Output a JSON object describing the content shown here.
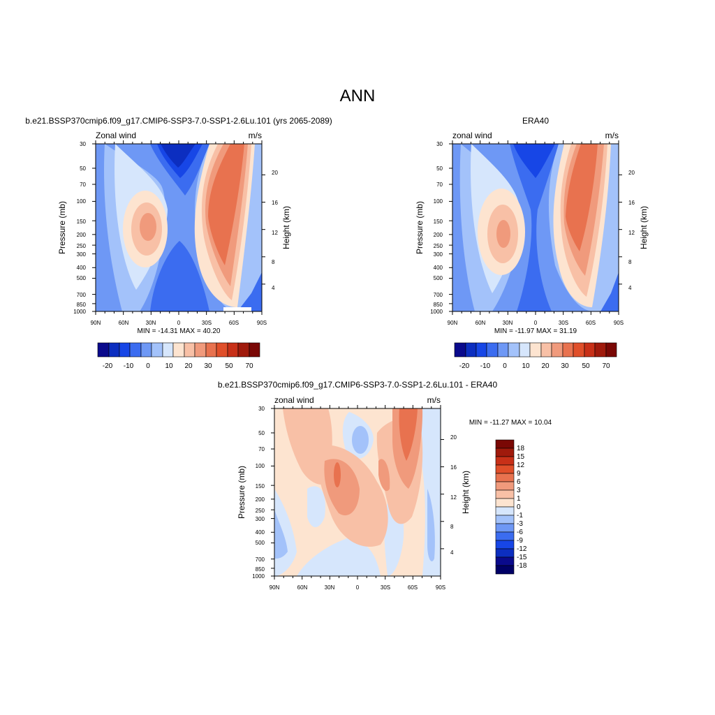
{
  "figure_title": "ANN",
  "panels": [
    {
      "title": "b.e21.BSSP370cmip6.f09_g17.CMIP6-SSP3-7.0-SSP1-2.6Lu.101 (yrs 2065-2089)",
      "left_label": "Zonal wind",
      "right_label": "m/s",
      "minmax": "MIN = -14.31  MAX =  40.20"
    },
    {
      "title": "ERA40",
      "left_label": "zonal wind",
      "right_label": "m/s",
      "minmax": "MIN = -11.97  MAX =  31.19"
    },
    {
      "title": "b.e21.BSSP370cmip6.f09_g17.CMIP6-SSP3-7.0-SSP1-2.6Lu.101 - ERA40",
      "left_label": "zonal wind",
      "right_label": "m/s",
      "minmax": "MIN = -11.27  MAX =  10.04"
    }
  ],
  "axes": {
    "ylabel": "Pressure (mb)",
    "y2label": "Height (km)",
    "x_ticks": [
      "90N",
      "60N",
      "30N",
      "0",
      "30S",
      "60S",
      "90S"
    ],
    "p_ticks": [
      "30",
      "50",
      "70",
      "100",
      "150",
      "200",
      "250",
      "300",
      "400",
      "500",
      "700",
      "850",
      "1000"
    ],
    "h_ticks": [
      "20",
      "16",
      "12",
      "8",
      "4"
    ]
  },
  "colorbar_main": {
    "labels": [
      "-20",
      "-10",
      "0",
      "10",
      "20",
      "30",
      "50",
      "70"
    ],
    "colors": [
      "#0a0a8c",
      "#0c2ec0",
      "#1746e6",
      "#3b6cf0",
      "#6e98f5",
      "#a3c2fa",
      "#d6e6fc",
      "#fde4d0",
      "#f8c0a6",
      "#f09a7c",
      "#e8724f",
      "#e04f2a",
      "#c83018",
      "#a01a0c",
      "#7a0805"
    ]
  },
  "colorbar_diff": {
    "labels": [
      "18",
      "15",
      "12",
      "9",
      "6",
      "3",
      "1",
      "0",
      "-1",
      "-3",
      "-6",
      "-9",
      "-12",
      "-15",
      "-18"
    ],
    "colors": [
      "#7a0805",
      "#a01a0c",
      "#c83018",
      "#e04f2a",
      "#e8724f",
      "#f09a7c",
      "#f8c0a6",
      "#fde4d0",
      "#d6e6fc",
      "#a3c2fa",
      "#6e98f5",
      "#3b6cf0",
      "#1746e6",
      "#0c2ec0",
      "#0a0a8c",
      "#000066"
    ]
  },
  "chart_data": [
    {
      "type": "heatmap",
      "title": "b.e21.BSSP370cmip6.f09_g17.CMIP6-SSP3-7.0-SSP1-2.6Lu.101 (yrs 2065-2089)",
      "variable": "Zonal wind",
      "units": "m/s",
      "xlabel": "",
      "ylabel": "Pressure (mb)",
      "y2label": "Height (km)",
      "x": [
        "90N",
        "60N",
        "30N",
        "0",
        "30S",
        "60S",
        "90S"
      ],
      "xlim": [
        90,
        -90
      ],
      "ylim": [
        1000,
        30
      ],
      "y_scale": "log",
      "min": -14.31,
      "max": 40.2,
      "features": [
        {
          "kind": "jet",
          "lat": 35,
          "pressure": 180,
          "value": 25
        },
        {
          "kind": "jet",
          "lat": -45,
          "pressure": 170,
          "value": 40
        },
        {
          "kind": "easterly",
          "lat": 5,
          "pressure": 50,
          "value": -14
        },
        {
          "kind": "easterly",
          "lat": 0,
          "pressure": 800,
          "value": -8
        }
      ]
    },
    {
      "type": "heatmap",
      "title": "ERA40",
      "variable": "zonal wind",
      "units": "m/s",
      "xlabel": "",
      "ylabel": "Pressure (mb)",
      "y2label": "Height (km)",
      "x": [
        "90N",
        "60N",
        "30N",
        "0",
        "30S",
        "60S",
        "90S"
      ],
      "xlim": [
        90,
        -90
      ],
      "ylim": [
        1000,
        30
      ],
      "y_scale": "log",
      "min": -11.97,
      "max": 31.19,
      "features": [
        {
          "kind": "jet",
          "lat": 32,
          "pressure": 200,
          "value": 22
        },
        {
          "kind": "jet",
          "lat": -40,
          "pressure": 190,
          "value": 31
        },
        {
          "kind": "easterly",
          "lat": 5,
          "pressure": 40,
          "value": -12
        },
        {
          "kind": "easterly",
          "lat": 0,
          "pressure": 700,
          "value": -6
        }
      ]
    },
    {
      "type": "heatmap",
      "title": "b.e21.BSSP370cmip6.f09_g17.CMIP6-SSP3-7.0-SSP1-2.6Lu.101 - ERA40",
      "variable": "zonal wind",
      "units": "m/s",
      "xlabel": "",
      "ylabel": "Pressure (mb)",
      "y2label": "Height (km)",
      "x": [
        "90N",
        "60N",
        "30N",
        "0",
        "30S",
        "60S",
        "90S"
      ],
      "xlim": [
        90,
        -90
      ],
      "ylim": [
        1000,
        30
      ],
      "y_scale": "log",
      "min": -11.27,
      "max": 10.04,
      "features": [
        {
          "kind": "positive",
          "lat": -50,
          "pressure": 60,
          "value": 10
        },
        {
          "kind": "negative",
          "lat": 0,
          "pressure": 70,
          "value": -6
        },
        {
          "kind": "positive",
          "lat": 30,
          "pressure": 120,
          "value": 5
        },
        {
          "kind": "negative",
          "lat": 75,
          "pressure": 350,
          "value": -3
        }
      ]
    }
  ]
}
